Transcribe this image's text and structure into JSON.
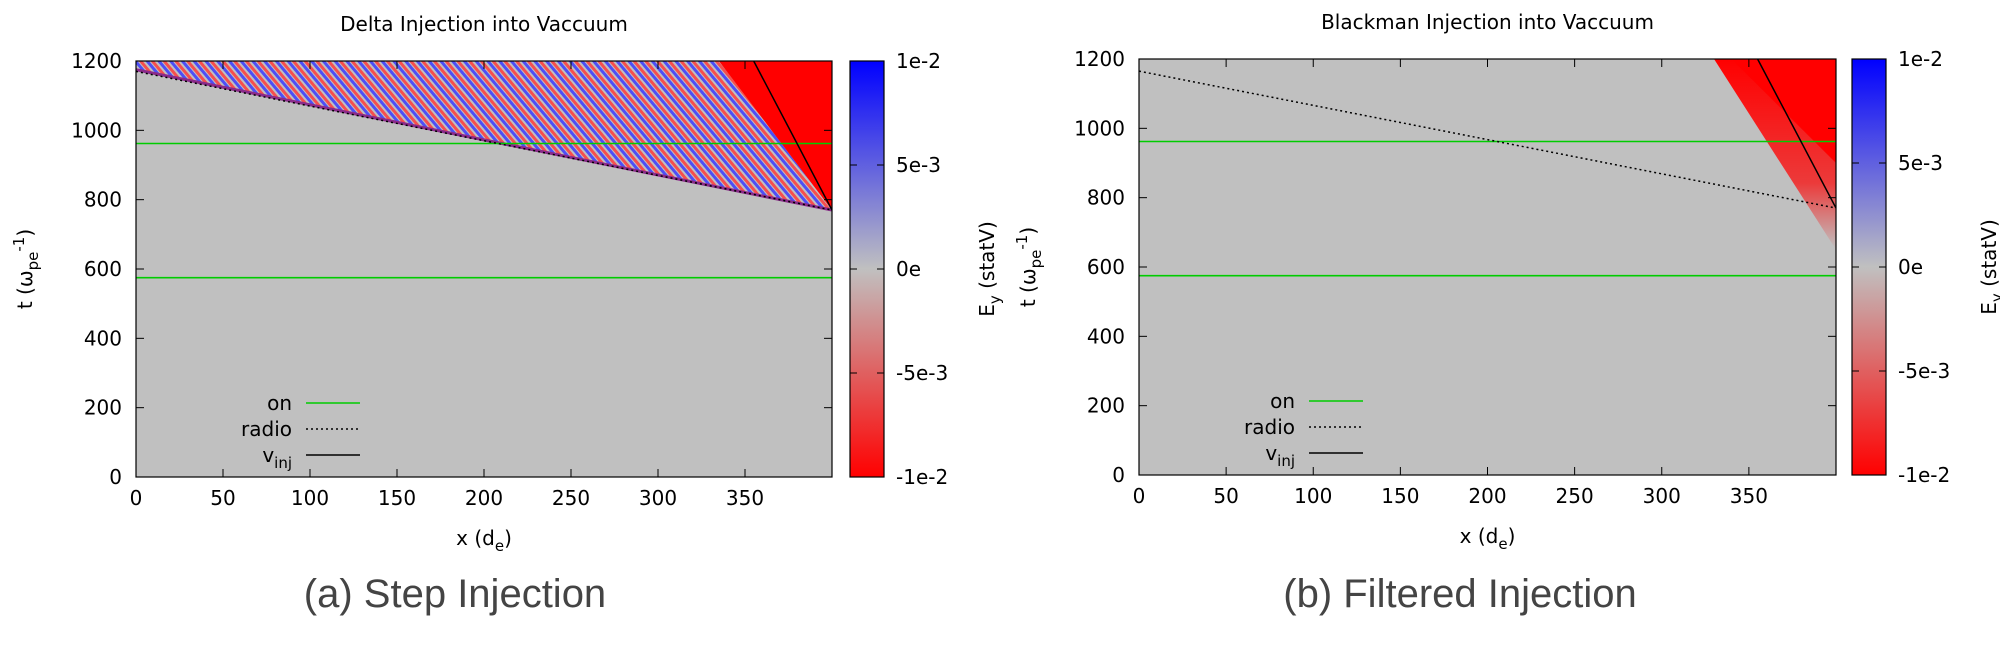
{
  "panels": [
    {
      "caption": "(a) Step Injection",
      "chart_data": {
        "type": "heatmap",
        "title": "Delta Injection into Vaccuum",
        "xlabel": "x (d_e)",
        "ylabel": "t (ω_pe^-1)",
        "xlim": [
          0,
          400
        ],
        "ylim": [
          0,
          1200
        ],
        "xticks": [
          "0",
          "50",
          "100",
          "150",
          "200",
          "250",
          "300",
          "350"
        ],
        "yticks": [
          "0",
          "200",
          "400",
          "600",
          "800",
          "1000",
          "1200"
        ],
        "colorbar": {
          "label": "E_y (statV)",
          "min": -0.01,
          "max": 0.01,
          "ticks": [
            "-1e-2",
            "-5e-3",
            "0e",
            "5e-3",
            "1e-2"
          ],
          "colors": {
            "negative": "#ff0000",
            "zero": "#c0c0c0",
            "positive": "#0000ff"
          }
        },
        "features": {
          "red_region": [
            [
              335,
              1200
            ],
            [
              400,
              1200
            ],
            [
              400,
              770
            ]
          ],
          "fan_region": [
            [
              0,
              1175
            ],
            [
              0,
              1200
            ],
            [
              335,
              1200
            ],
            [
              400,
              770
            ]
          ],
          "filtered": false
        },
        "series": [
          {
            "name": "on",
            "style": "solid",
            "color": "#00cc00",
            "points": [
              [
                [
                  0,
                  575
                ],
                [
                  400,
                  575
                ]
              ],
              [
                [
                  0,
                  962
                ],
                [
                  400,
                  962
                ]
              ]
            ]
          },
          {
            "name": "radio",
            "style": "dotted",
            "color": "#000000",
            "points": [
              [
                [
                  0,
                  1170
                ],
                [
                  400,
                  770
                ]
              ]
            ]
          },
          {
            "name": "v_inj",
            "style": "solid",
            "color": "#000000",
            "points": [
              [
                [
                  355,
                  1200
                ],
                [
                  400,
                  770
                ]
              ]
            ]
          }
        ],
        "legend": {
          "position": "bottom-left",
          "entries": [
            {
              "text": "on",
              "sub": ""
            },
            {
              "text": "radio",
              "sub": ""
            },
            {
              "text": "v",
              "sub": "inj"
            }
          ]
        }
      }
    },
    {
      "caption": "(b) Filtered Injection",
      "chart_data": {
        "type": "heatmap",
        "title": "Blackman Injection into Vaccuum",
        "xlabel": "x (d_e)",
        "ylabel": "t (ω_pe^-1)",
        "xlim": [
          0,
          400
        ],
        "ylim": [
          0,
          1200
        ],
        "xticks": [
          "0",
          "50",
          "100",
          "150",
          "200",
          "250",
          "300",
          "350"
        ],
        "yticks": [
          "0",
          "200",
          "400",
          "600",
          "800",
          "1000",
          "1200"
        ],
        "colorbar": {
          "label": "E_y (statV)",
          "min": -0.01,
          "max": 0.01,
          "ticks": [
            "-1e-2",
            "-5e-3",
            "0e",
            "5e-3",
            "1e-2"
          ],
          "colors": {
            "negative": "#ff0000",
            "zero": "#c0c0c0",
            "positive": "#0000ff"
          }
        },
        "features": {
          "red_region": [
            [
              330,
              1200
            ],
            [
              400,
              1200
            ],
            [
              400,
              650
            ]
          ],
          "fan_region": [],
          "filtered": true
        },
        "series": [
          {
            "name": "on",
            "style": "solid",
            "color": "#00cc00",
            "points": [
              [
                [
                  0,
                  575
                ],
                [
                  400,
                  575
                ]
              ],
              [
                [
                  0,
                  962
                ],
                [
                  400,
                  962
                ]
              ]
            ]
          },
          {
            "name": "radio",
            "style": "dotted",
            "color": "#000000",
            "points": [
              [
                [
                  0,
                  1165
                ],
                [
                  400,
                  770
                ]
              ]
            ]
          },
          {
            "name": "v_inj",
            "style": "solid",
            "color": "#000000",
            "points": [
              [
                [
                  355,
                  1200
                ],
                [
                  400,
                  770
                ]
              ]
            ]
          }
        ],
        "legend": {
          "position": "bottom-left",
          "entries": [
            {
              "text": "on",
              "sub": ""
            },
            {
              "text": "radio",
              "sub": ""
            },
            {
              "text": "v",
              "sub": "inj"
            }
          ]
        }
      }
    }
  ]
}
